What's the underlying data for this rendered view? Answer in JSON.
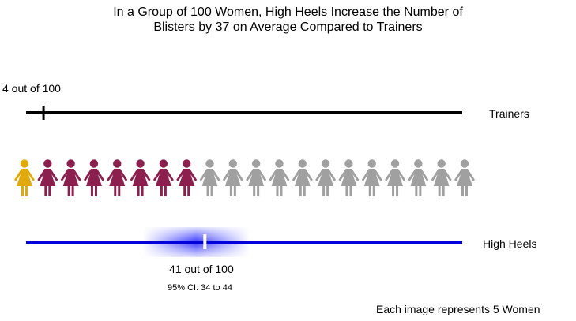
{
  "chart_data": {
    "type": "icon-array",
    "title": "In a Group of 100 Women, High Heels Increase the Number of Blisters by 37 on Average Compared to Trainers",
    "title_lines": [
      "In a Group of 100 Women, High Heels Increase the Number of",
      "Blisters by 37 on Average Compared to Trainers"
    ],
    "scale_min": 0,
    "scale_max": 100,
    "icon_count": 20,
    "per_icon": 5,
    "baseline": {
      "name": "Trainers",
      "value": 4,
      "label": "4 out of 100"
    },
    "treatment": {
      "name": "High Heels",
      "value": 41,
      "ci_low": 34,
      "ci_high": 44,
      "label": "41 out of 100",
      "ci_label": "95% CI: 34 to 44"
    },
    "difference": 37,
    "icons": {
      "baseline_count": 1,
      "increase_count": 7,
      "remaining_count": 12
    },
    "footnote": "Each image represents 5 Women",
    "colors": {
      "baseline_icon": "#E0AA0F",
      "increase_icon": "#8B1F4E",
      "remaining_icon": "#A0A0A0",
      "baseline_line": "#000000",
      "treatment_line": "#0000DD",
      "ci_glow": "#3030FF",
      "treatment_marker": "#FFFFFF"
    }
  }
}
